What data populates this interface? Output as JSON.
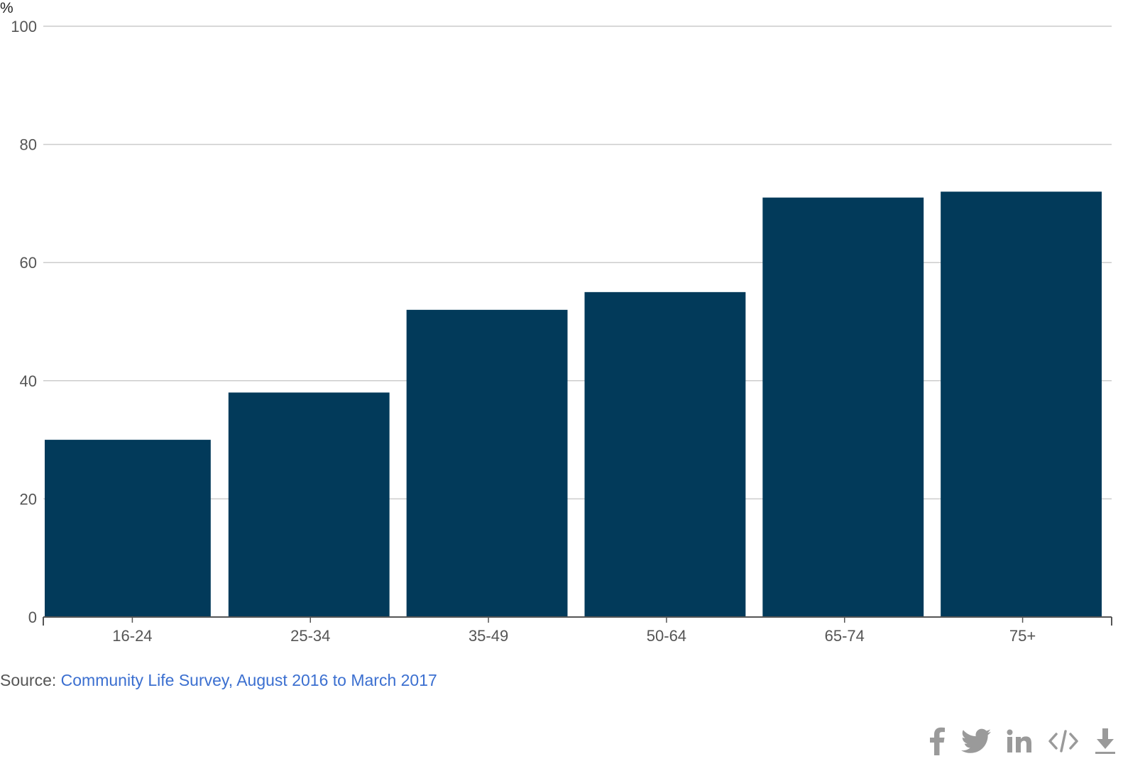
{
  "chart_data": {
    "type": "bar",
    "ylabel": "%",
    "ylim": [
      0,
      100
    ],
    "yticks": [
      0,
      20,
      40,
      60,
      80,
      100
    ],
    "grid": true,
    "categories": [
      "16-24",
      "25-34",
      "35-49",
      "50-64",
      "65-74",
      "75+"
    ],
    "values": [
      30,
      38,
      52,
      55,
      71,
      72
    ],
    "bar_color": "#023a5a",
    "gridline_color": "#cccccc"
  },
  "footer": {
    "source_prefix": "Source: ",
    "source_link_text": "Community Life Survey, August 2016 to March 2017",
    "link_color": "#3b6fd0"
  },
  "share": {
    "icons": [
      "facebook-icon",
      "twitter-icon",
      "linkedin-icon",
      "embed-code-icon",
      "download-icon"
    ],
    "icon_color": "#9a9a9a"
  }
}
